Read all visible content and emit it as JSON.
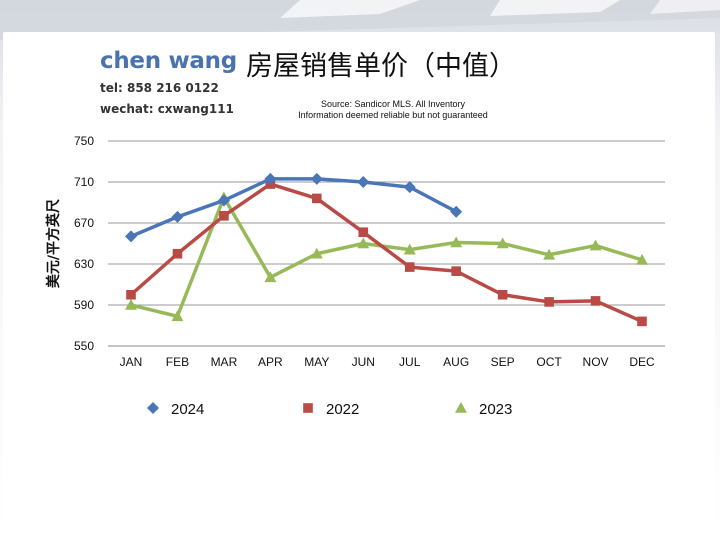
{
  "brand": {
    "name": "chen wang",
    "tel": "tel: 858 216 0122",
    "wechat": "wechat: cxwang111"
  },
  "source": {
    "line1": "Source: Sandicor MLS. All Inventory",
    "line2": "Information deemed reliable but not guaranteed"
  },
  "chart_data": {
    "type": "line",
    "title": "房屋销售单价（中值）",
    "xlabel": "",
    "ylabel": "美元/平方英尺",
    "categories": [
      "JAN",
      "FEB",
      "MAR",
      "APR",
      "MAY",
      "JUN",
      "JUL",
      "AUG",
      "SEP",
      "OCT",
      "NOV",
      "DEC"
    ],
    "ylim": [
      550,
      750
    ],
    "yticks": [
      550,
      590,
      630,
      670,
      710,
      750
    ],
    "grid": true,
    "legend_position": "bottom",
    "series": [
      {
        "name": "2024",
        "color": "#4a76b8",
        "marker": "diamond",
        "values": [
          657,
          676,
          692,
          713,
          713,
          710,
          705,
          681,
          null,
          null,
          null,
          null
        ]
      },
      {
        "name": "2022",
        "color": "#b94a45",
        "marker": "square",
        "values": [
          600,
          640,
          677,
          708,
          694,
          661,
          627,
          623,
          600,
          593,
          594,
          574
        ]
      },
      {
        "name": "2023",
        "color": "#98b958",
        "marker": "triangle",
        "values": [
          590,
          579,
          695,
          617,
          640,
          650,
          644,
          651,
          650,
          639,
          648,
          634
        ]
      }
    ]
  }
}
